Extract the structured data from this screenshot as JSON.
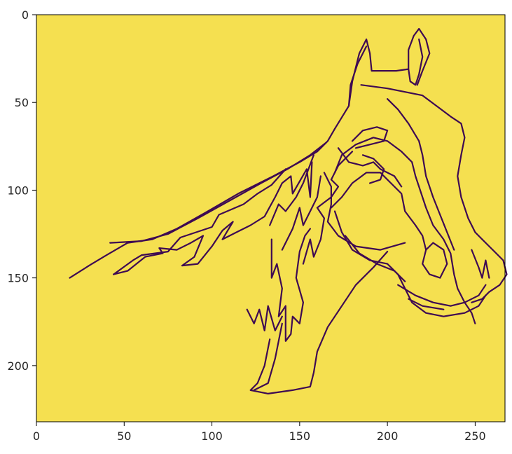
{
  "chart_data": {
    "type": "image",
    "title": "",
    "xlabel": "",
    "ylabel": "",
    "xlim": [
      0,
      267
    ],
    "ylim": [
      232,
      0
    ],
    "x_ticks": [
      0,
      50,
      100,
      150,
      200,
      250
    ],
    "y_ticks": [
      0,
      50,
      100,
      150,
      200
    ],
    "x_tick_labels": [
      "0",
      "50",
      "100",
      "150",
      "200",
      "250"
    ],
    "y_tick_labels": [
      "0",
      "50",
      "100",
      "150",
      "200"
    ],
    "grid": false,
    "legend": "none",
    "colormap": "viridis",
    "background_color": "#f5e050",
    "line_color": "#3e0a52",
    "image_content": "horse-head-edge-outline"
  }
}
